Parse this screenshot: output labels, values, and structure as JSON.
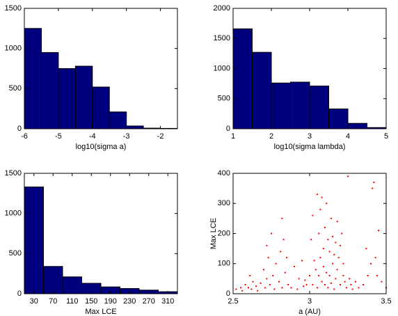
{
  "chart_data": [
    {
      "type": "histogram",
      "xlabel": "log10(sigma a)",
      "color": "#00007f",
      "bins": [
        -6,
        -5.5,
        -5,
        -4.5,
        -4,
        -3.5,
        -3,
        -2.5,
        -2,
        -1.5
      ],
      "values": [
        1250,
        950,
        750,
        780,
        520,
        210,
        35,
        8,
        5
      ],
      "xlim": [
        -6,
        -1.5
      ],
      "xticks": [
        -6,
        -5,
        -4,
        -3,
        -2
      ],
      "ylim": [
        0,
        1500
      ],
      "yticks": [
        0,
        500,
        1000,
        1500
      ]
    },
    {
      "type": "histogram",
      "xlabel": "log10(sigma lambda)",
      "color": "#00007f",
      "bins": [
        1,
        1.5,
        2,
        2.5,
        3,
        3.5,
        4,
        4.5,
        5
      ],
      "values": [
        1660,
        1270,
        760,
        775,
        710,
        330,
        90,
        20
      ],
      "xlim": [
        1,
        5
      ],
      "xticks": [
        1,
        2,
        3,
        4,
        5
      ],
      "ylim": [
        0,
        2000
      ],
      "yticks": [
        0,
        500,
        1000,
        1500,
        2000
      ]
    },
    {
      "type": "histogram",
      "xlabel": "Max LCE",
      "color": "#00007f",
      "bins": [
        10,
        50,
        90,
        130,
        170,
        210,
        250,
        290,
        330
      ],
      "values": [
        1330,
        340,
        210,
        130,
        85,
        65,
        45,
        25
      ],
      "xlim": [
        10,
        330
      ],
      "xticks": [
        30,
        70,
        110,
        150,
        190,
        230,
        270,
        310
      ],
      "ylim": [
        0,
        1500
      ],
      "yticks": [
        0,
        500,
        1000,
        1500
      ]
    },
    {
      "type": "scatter",
      "xlabel": "a (AU)",
      "ylabel": "Max LCE",
      "color": "#ff0000",
      "x": [
        2.52,
        2.55,
        2.56,
        2.58,
        2.6,
        2.61,
        2.62,
        2.63,
        2.65,
        2.66,
        2.68,
        2.7,
        2.71,
        2.72,
        2.72,
        2.73,
        2.74,
        2.75,
        2.76,
        2.77,
        2.78,
        2.8,
        2.81,
        2.82,
        2.82,
        2.83,
        2.84,
        2.85,
        2.86,
        2.88,
        2.9,
        2.92,
        2.93,
        2.95,
        2.96,
        2.97,
        2.98,
        3.0,
        3.01,
        3.02,
        3.02,
        3.03,
        3.04,
        3.05,
        3.05,
        3.06,
        3.06,
        3.07,
        3.07,
        3.08,
        3.08,
        3.09,
        3.09,
        3.1,
        3.1,
        3.11,
        3.11,
        3.12,
        3.12,
        3.13,
        3.13,
        3.14,
        3.14,
        3.15,
        3.15,
        3.16,
        3.16,
        3.17,
        3.17,
        3.18,
        3.18,
        3.19,
        3.2,
        3.2,
        3.21,
        3.22,
        3.22,
        3.23,
        3.24,
        3.25,
        3.26,
        3.27,
        3.28,
        3.3,
        3.32,
        3.35,
        3.37,
        3.38,
        3.4,
        3.41,
        3.42,
        3.43,
        3.44,
        3.45,
        3.47,
        3.5
      ],
      "y": [
        15,
        20,
        10,
        30,
        20,
        60,
        15,
        40,
        25,
        10,
        35,
        80,
        20,
        160,
        50,
        120,
        30,
        200,
        60,
        15,
        100,
        40,
        140,
        250,
        20,
        180,
        70,
        120,
        30,
        20,
        90,
        15,
        50,
        110,
        25,
        45,
        30,
        60,
        180,
        260,
        30,
        110,
        80,
        330,
        20,
        200,
        60,
        280,
        120,
        320,
        40,
        150,
        90,
        220,
        30,
        300,
        70,
        180,
        20,
        140,
        60,
        250,
        35,
        190,
        100,
        130,
        15,
        170,
        50,
        240,
        80,
        120,
        160,
        30,
        200,
        60,
        100,
        40,
        20,
        390,
        50,
        30,
        15,
        40,
        20,
        30,
        150,
        60,
        100,
        350,
        370,
        120,
        60,
        210,
        40,
        20
      ],
      "xlim": [
        2.5,
        3.5
      ],
      "xticks": [
        2.5,
        3,
        3.5
      ],
      "ylim": [
        0,
        400
      ],
      "yticks": [
        0,
        100,
        200,
        300,
        400
      ]
    }
  ]
}
